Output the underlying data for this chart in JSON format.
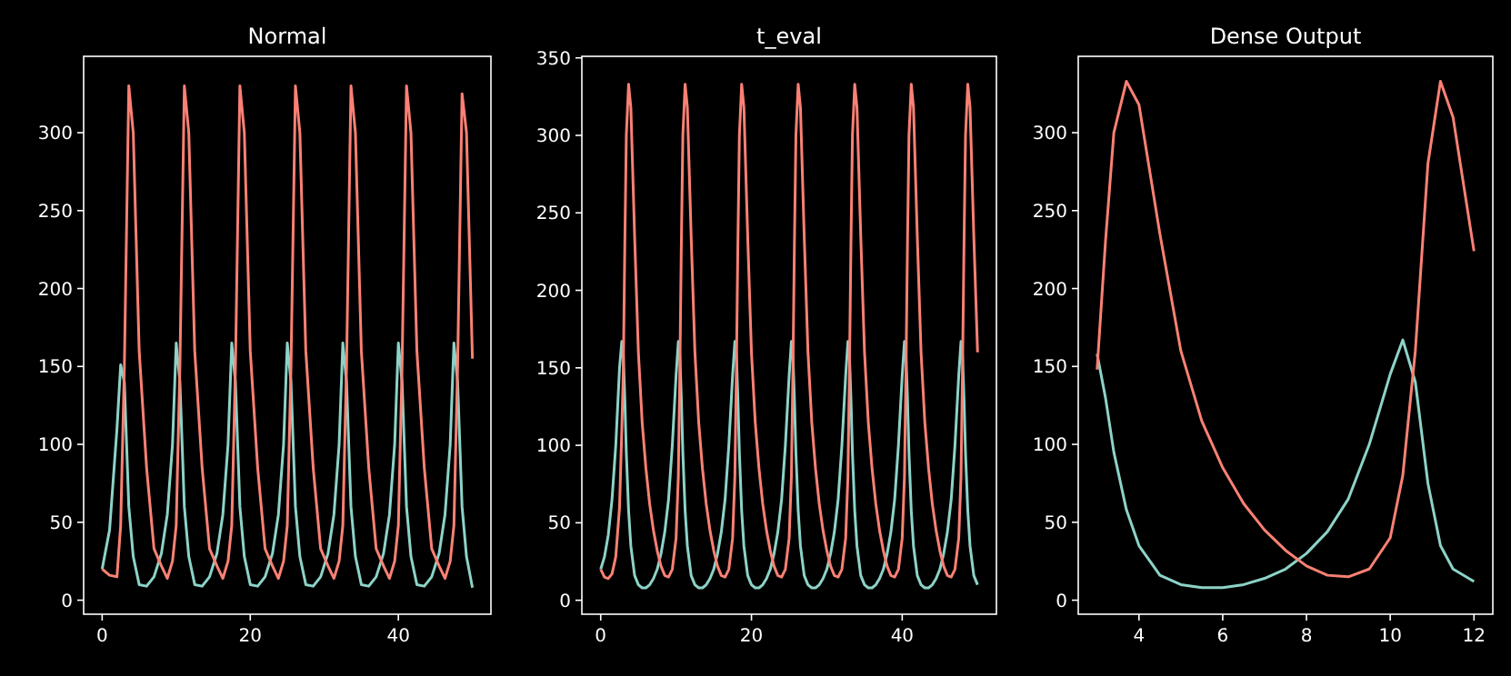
{
  "chart_data": [
    {
      "type": "line",
      "title": "Normal",
      "xlim": [
        -2.5,
        52.5
      ],
      "ylim": [
        -9,
        349
      ],
      "xticks": [
        0,
        20,
        40
      ],
      "yticks": [
        0,
        50,
        100,
        150,
        200,
        250,
        300
      ],
      "x": [
        0,
        1,
        2,
        2.5,
        3,
        3.6,
        4.2,
        5,
        6,
        7,
        8,
        8.8,
        9.5,
        10,
        10.5,
        11.1,
        11.7,
        12.5,
        13.5,
        14.5,
        15.5,
        16.3,
        17,
        17.5,
        18,
        18.6,
        19.2,
        20,
        21,
        22,
        23,
        23.8,
        24.5,
        25,
        25.5,
        26.1,
        26.7,
        27.5,
        28.5,
        29.5,
        30.5,
        31.3,
        32,
        32.5,
        33,
        33.6,
        34.2,
        35,
        36,
        37,
        38,
        38.8,
        39.5,
        40,
        40.5,
        41.1,
        41.7,
        42.5,
        43.5,
        44.5,
        45.5,
        46.3,
        47,
        47.5,
        48,
        48.6,
        49.2,
        50
      ],
      "series": [
        {
          "color": "#8dd3c7",
          "values": [
            20,
            45,
            110,
            151,
            140,
            60,
            28,
            10,
            9,
            15,
            30,
            55,
            100,
            165,
            140,
            60,
            28,
            10,
            9,
            15,
            30,
            55,
            100,
            165,
            140,
            60,
            28,
            10,
            9,
            15,
            30,
            55,
            100,
            165,
            140,
            60,
            28,
            10,
            9,
            15,
            30,
            55,
            100,
            165,
            140,
            60,
            28,
            10,
            9,
            15,
            30,
            55,
            100,
            165,
            140,
            60,
            28,
            10,
            9,
            15,
            30,
            55,
            100,
            165,
            140,
            60,
            28,
            8
          ]
        },
        {
          "color": "#fa8174",
          "values": [
            20,
            16,
            15,
            48,
            150,
            330,
            300,
            160,
            85,
            33,
            22,
            14,
            25,
            48,
            150,
            330,
            300,
            160,
            85,
            33,
            22,
            14,
            25,
            48,
            150,
            330,
            300,
            160,
            85,
            33,
            22,
            14,
            25,
            48,
            150,
            330,
            300,
            160,
            85,
            33,
            22,
            14,
            25,
            48,
            150,
            330,
            300,
            160,
            85,
            33,
            22,
            14,
            25,
            48,
            150,
            330,
            300,
            160,
            85,
            33,
            22,
            14,
            25,
            48,
            150,
            325,
            300,
            155
          ]
        }
      ]
    },
    {
      "type": "line",
      "title": "t_eval",
      "xlim": [
        -2.5,
        52.5
      ],
      "ylim": [
        -9,
        351
      ],
      "xticks": [
        0,
        20,
        40
      ],
      "yticks": [
        0,
        50,
        100,
        150,
        200,
        250,
        300,
        350
      ],
      "x": [
        0,
        0.5,
        1,
        1.5,
        2,
        2.5,
        2.8,
        3,
        3.2,
        3.4,
        3.7,
        4,
        4.5,
        5,
        5.5,
        6,
        6.5,
        7,
        7.5,
        8,
        8.5,
        9,
        9.5,
        10,
        10.3,
        10.5,
        10.7,
        10.9,
        11.2,
        11.5,
        12,
        12.5,
        13,
        13.5,
        14,
        14.5,
        15,
        15.5,
        16,
        16.5,
        17,
        17.5,
        17.8,
        18,
        18.2,
        18.4,
        18.7,
        19,
        19.5,
        20,
        20.5,
        21,
        21.5,
        22,
        22.5,
        23,
        23.5,
        24,
        24.5,
        25,
        25.3,
        25.5,
        25.7,
        25.9,
        26.2,
        26.5,
        27,
        27.5,
        28,
        28.5,
        29,
        29.5,
        30,
        30.5,
        31,
        31.5,
        32,
        32.5,
        32.8,
        33,
        33.2,
        33.4,
        33.7,
        34,
        34.5,
        35,
        35.5,
        36,
        36.5,
        37,
        37.5,
        38,
        38.5,
        39,
        39.5,
        40,
        40.3,
        40.5,
        40.7,
        40.9,
        41.2,
        41.5,
        42,
        42.5,
        43,
        43.5,
        44,
        44.5,
        45,
        45.5,
        46,
        46.5,
        47,
        47.5,
        47.8,
        48,
        48.2,
        48.4,
        48.7,
        49,
        49.5,
        50
      ],
      "series": [
        {
          "color": "#8dd3c7",
          "values": [
            20,
            28,
            42,
            65,
            100,
            150,
            167,
            158,
            130,
            95,
            58,
            35,
            16,
            10,
            8,
            8,
            10,
            14,
            20,
            30,
            44,
            65,
            100,
            145,
            167,
            158,
            130,
            95,
            58,
            35,
            16,
            10,
            8,
            8,
            10,
            14,
            20,
            30,
            44,
            65,
            100,
            145,
            167,
            158,
            130,
            95,
            58,
            35,
            16,
            10,
            8,
            8,
            10,
            14,
            20,
            30,
            44,
            65,
            100,
            145,
            167,
            158,
            130,
            95,
            58,
            35,
            16,
            10,
            8,
            8,
            10,
            14,
            20,
            30,
            44,
            65,
            100,
            145,
            167,
            158,
            130,
            95,
            58,
            35,
            16,
            10,
            8,
            8,
            10,
            14,
            20,
            30,
            44,
            65,
            100,
            145,
            167,
            158,
            130,
            95,
            58,
            35,
            16,
            10,
            8,
            8,
            10,
            14,
            20,
            30,
            44,
            65,
            100,
            145,
            167,
            158,
            130,
            95,
            58,
            35,
            16,
            10
          ]
        },
        {
          "color": "#fa8174",
          "values": [
            20,
            15,
            14,
            17,
            28,
            60,
            110,
            148,
            230,
            300,
            333,
            318,
            235,
            160,
            115,
            85,
            62,
            45,
            32,
            22,
            16,
            15,
            20,
            40,
            80,
            148,
            230,
            300,
            333,
            318,
            235,
            160,
            115,
            85,
            62,
            45,
            32,
            22,
            16,
            15,
            20,
            40,
            80,
            148,
            230,
            300,
            333,
            318,
            235,
            160,
            115,
            85,
            62,
            45,
            32,
            22,
            16,
            15,
            20,
            40,
            80,
            148,
            230,
            300,
            333,
            318,
            235,
            160,
            115,
            85,
            62,
            45,
            32,
            22,
            16,
            15,
            20,
            40,
            80,
            148,
            230,
            300,
            333,
            318,
            235,
            160,
            115,
            85,
            62,
            45,
            32,
            22,
            16,
            15,
            20,
            40,
            80,
            148,
            230,
            300,
            333,
            318,
            235,
            160,
            115,
            85,
            62,
            45,
            32,
            22,
            16,
            15,
            20,
            40,
            80,
            148,
            230,
            300,
            333,
            318,
            235,
            160
          ]
        }
      ]
    },
    {
      "type": "line",
      "title": "Dense Output",
      "xlim": [
        2.55,
        12.45
      ],
      "ylim": [
        -9,
        349
      ],
      "xticks": [
        4,
        6,
        8,
        10,
        12
      ],
      "yticks": [
        0,
        50,
        100,
        150,
        200,
        250,
        300
      ],
      "x": [
        3,
        3.2,
        3.4,
        3.7,
        4,
        4.5,
        5,
        5.5,
        6,
        6.5,
        7,
        7.5,
        8,
        8.5,
        9,
        9.5,
        10,
        10.3,
        10.6,
        10.9,
        11.2,
        11.5,
        12
      ],
      "series": [
        {
          "color": "#8dd3c7",
          "values": [
            158,
            130,
            95,
            58,
            35,
            16,
            10,
            8,
            8,
            10,
            14,
            20,
            30,
            44,
            65,
            100,
            145,
            167,
            140,
            75,
            35,
            20,
            12
          ]
        },
        {
          "color": "#fa8174",
          "values": [
            148,
            230,
            300,
            333,
            318,
            235,
            160,
            115,
            85,
            62,
            45,
            32,
            22,
            16,
            15,
            20,
            40,
            80,
            160,
            280,
            333,
            310,
            224
          ]
        }
      ]
    }
  ]
}
